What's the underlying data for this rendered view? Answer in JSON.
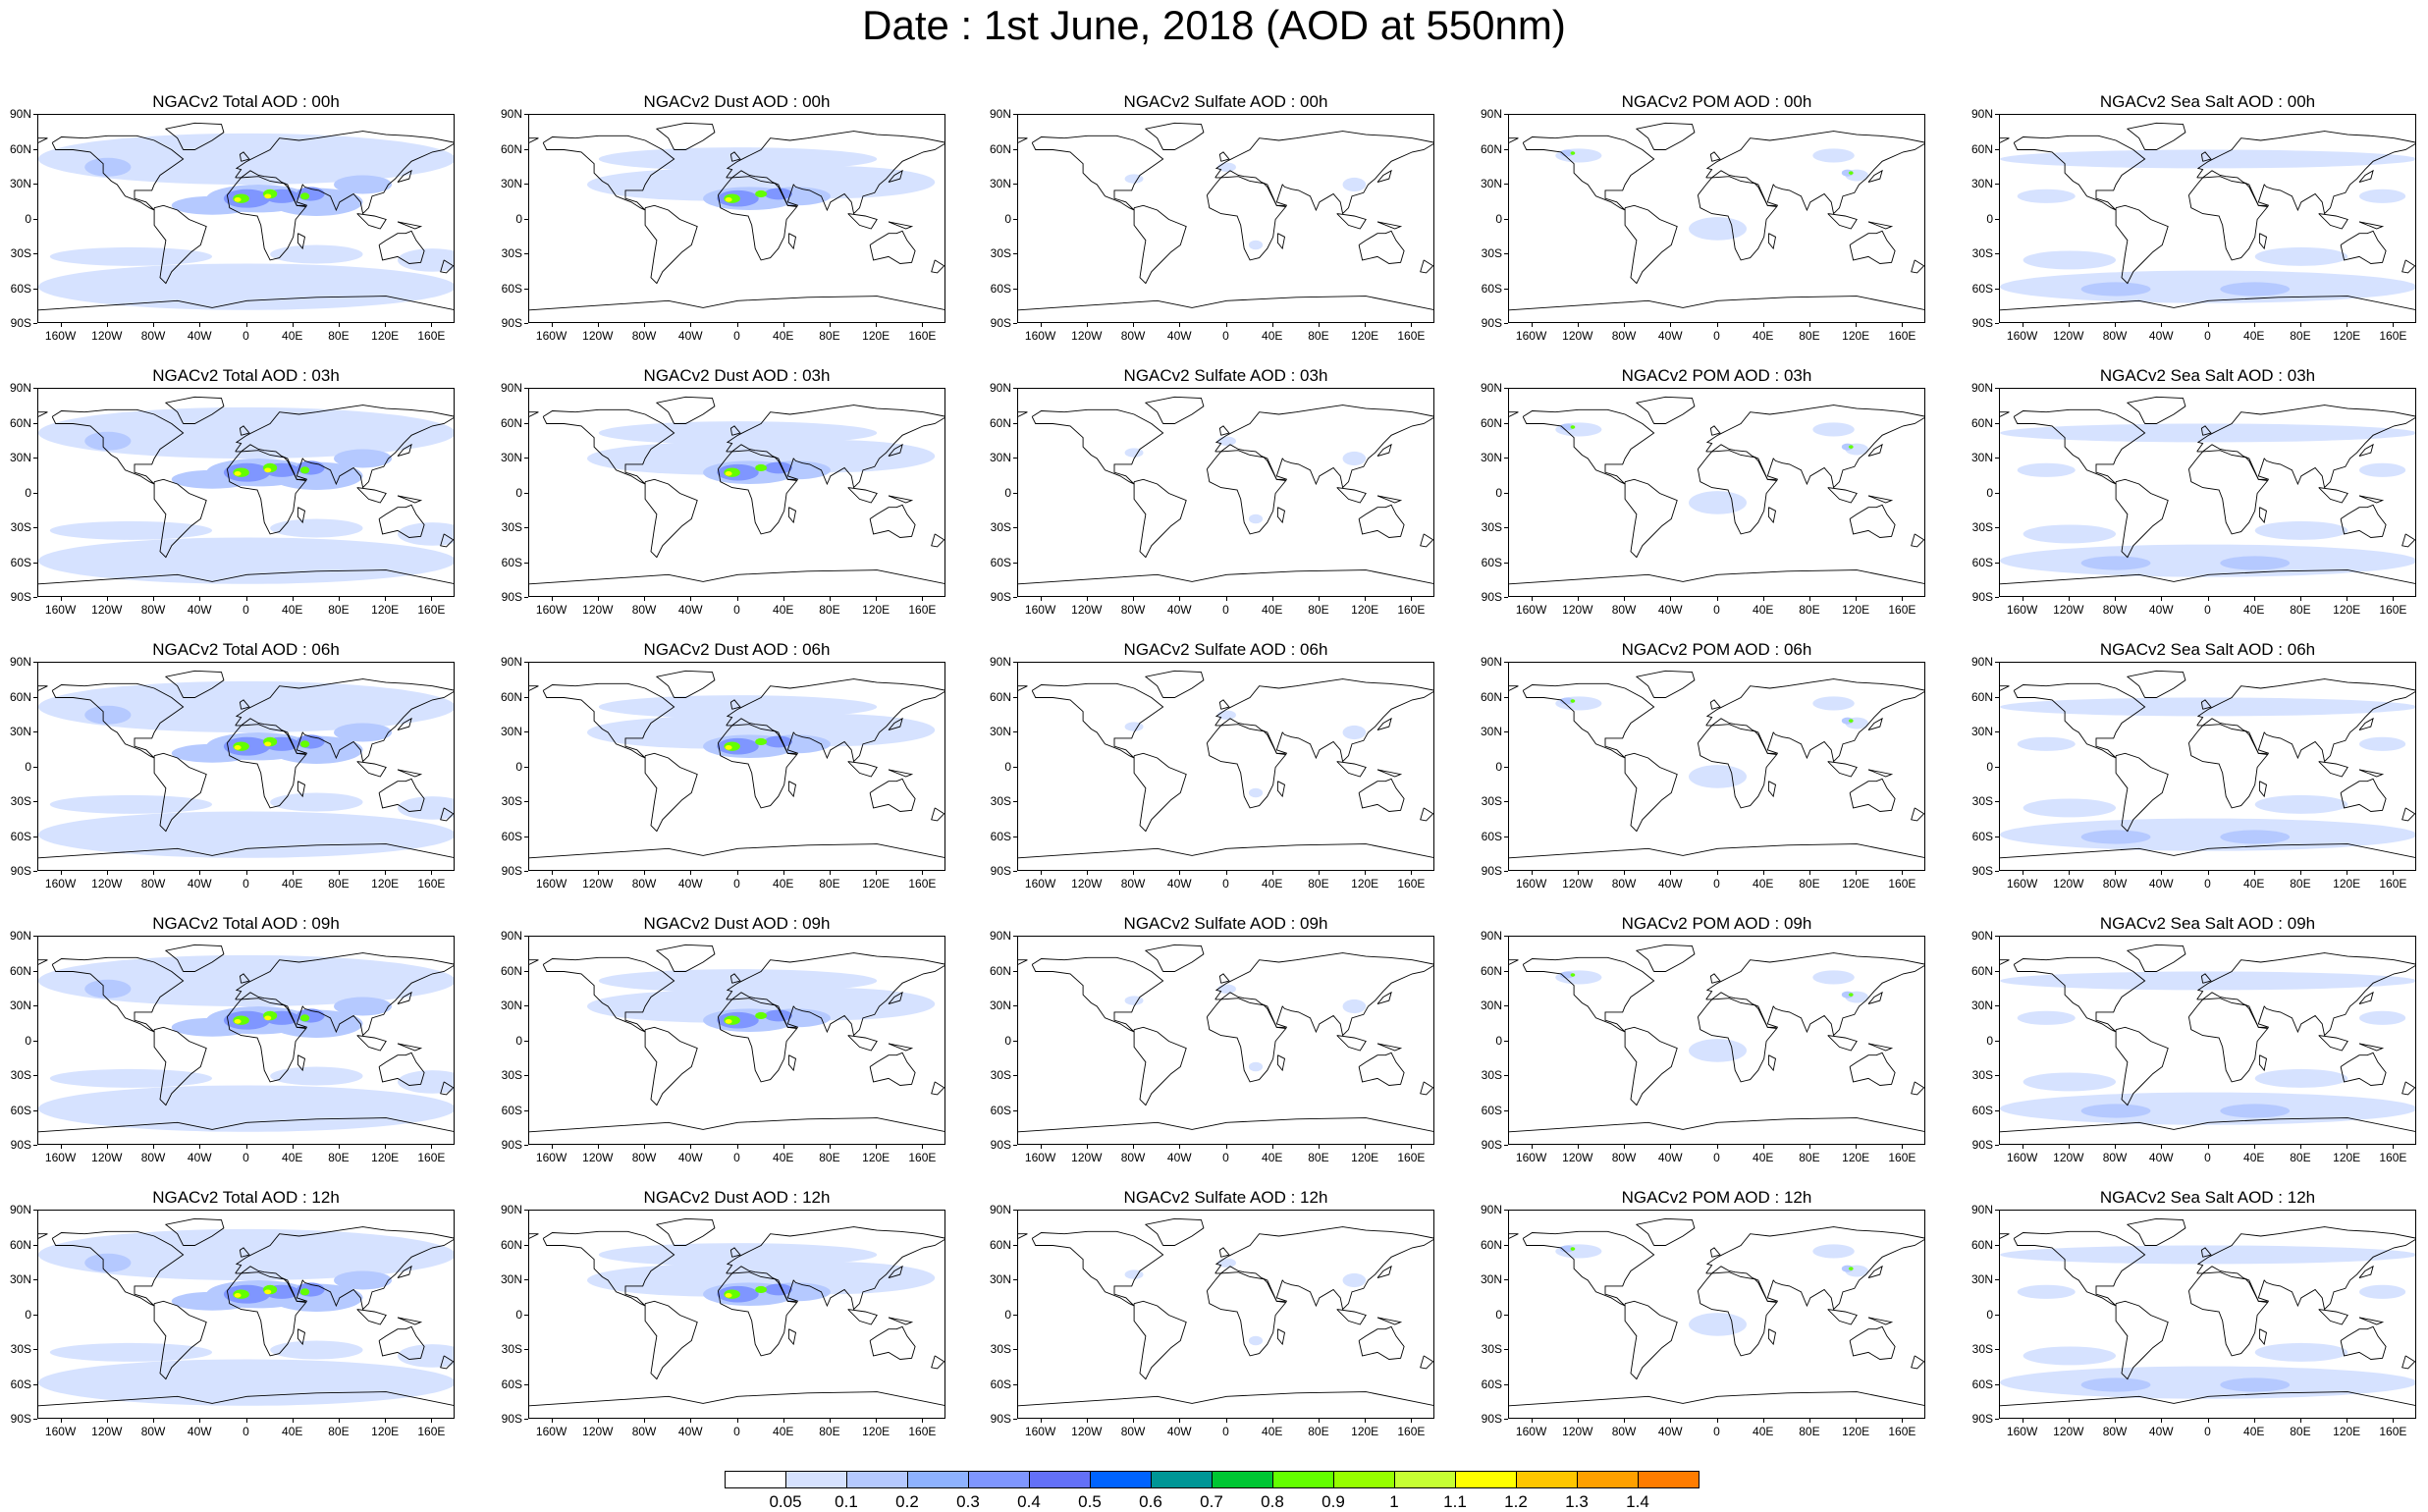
{
  "title": "Date : 1st June, 2018 (AOD at 550nm)",
  "lat_labels": [
    "90N",
    "60N",
    "30N",
    "0",
    "30S",
    "60S",
    "90S"
  ],
  "lon_labels": [
    "160W",
    "120W",
    "80W",
    "40W",
    "0",
    "40E",
    "80E",
    "120E",
    "160E"
  ],
  "panels": [
    [
      {
        "title": "NGACv2 Total AOD : 00h",
        "field": "total"
      },
      {
        "title": "NGACv2 Dust AOD : 00h",
        "field": "dust"
      },
      {
        "title": "NGACv2 Sulfate AOD : 00h",
        "field": "sulfate"
      },
      {
        "title": "NGACv2 POM AOD : 00h",
        "field": "pom"
      },
      {
        "title": "NGACv2 Sea Salt AOD : 00h",
        "field": "seasalt"
      }
    ],
    [
      {
        "title": "NGACv2 Total AOD : 03h",
        "field": "total"
      },
      {
        "title": "NGACv2 Dust AOD : 03h",
        "field": "dust"
      },
      {
        "title": "NGACv2 Sulfate AOD : 03h",
        "field": "sulfate"
      },
      {
        "title": "NGACv2 POM AOD : 03h",
        "field": "pom"
      },
      {
        "title": "NGACv2 Sea Salt AOD : 03h",
        "field": "seasalt"
      }
    ],
    [
      {
        "title": "NGACv2 Total AOD : 06h",
        "field": "total"
      },
      {
        "title": "NGACv2 Dust AOD : 06h",
        "field": "dust"
      },
      {
        "title": "NGACv2 Sulfate AOD : 06h",
        "field": "sulfate"
      },
      {
        "title": "NGACv2 POM AOD : 06h",
        "field": "pom"
      },
      {
        "title": "NGACv2 Sea Salt AOD : 06h",
        "field": "seasalt"
      }
    ],
    [
      {
        "title": "NGACv2 Total AOD : 09h",
        "field": "total"
      },
      {
        "title": "NGACv2 Dust AOD : 09h",
        "field": "dust"
      },
      {
        "title": "NGACv2 Sulfate AOD : 09h",
        "field": "sulfate"
      },
      {
        "title": "NGACv2 POM AOD : 09h",
        "field": "pom"
      },
      {
        "title": "NGACv2 Sea Salt  AOD : 09h",
        "field": "seasalt"
      }
    ],
    [
      {
        "title": "NGACv2 Total AOD  : 12h",
        "field": "total"
      },
      {
        "title": "NGACv2 Dust AOD : 12h",
        "field": "dust"
      },
      {
        "title": "NGACv2 Sulfate AOD : 12h",
        "field": "sulfate"
      },
      {
        "title": "NGACv2 POM  AOD : 12h",
        "field": "pom"
      },
      {
        "title": "NGACv2 Sea Salt AOD : 12h",
        "field": "seasalt"
      }
    ]
  ],
  "colorbar": {
    "labels": [
      "0.05",
      "0.1",
      "0.2",
      "0.3",
      "0.4",
      "0.5",
      "0.6",
      "0.7",
      "0.8",
      "0.9",
      "1",
      "1.1",
      "1.2",
      "1.3",
      "1.4"
    ],
    "colors": [
      "#ffffff",
      "#d6e2ff",
      "#b5c9ff",
      "#8eb2ff",
      "#7f96ff",
      "#6370f8",
      "#0063ff",
      "#009696",
      "#00c633",
      "#63ff00",
      "#96ff00",
      "#c6ff33",
      "#ffff00",
      "#ffc600",
      "#ffa000",
      "#ff7c00",
      "#ff1900"
    ]
  },
  "colors": {
    "low": "#d6e2ff",
    "mid": "#b5c9ff",
    "high": "#7f96ff",
    "green": "#63ff00",
    "yellow": "#ffff00",
    "coast": "#000000"
  }
}
